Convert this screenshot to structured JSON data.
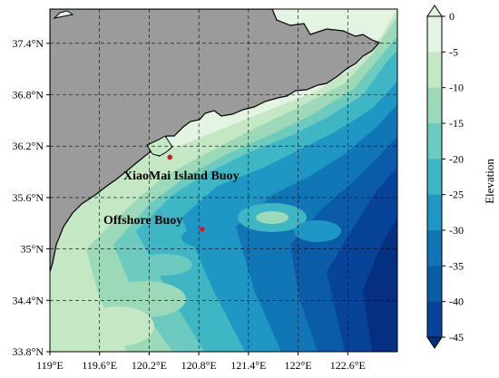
{
  "figure": {
    "colorbar_label": "Elevation",
    "colorbar_ticks": [
      "0",
      "-5",
      "-10",
      "-15",
      "-20",
      "-25",
      "-30",
      "-35",
      "-40",
      "-45"
    ],
    "x_tick_labels": [
      "119°E",
      "119.6°E",
      "120.2°E",
      "120.8°E",
      "121.4°E",
      "122°E",
      "122.6°E"
    ],
    "y_tick_labels": [
      "37.4°N",
      "36.8°N",
      "36.2°N",
      "35.6°N",
      "35°N",
      "34.4°N",
      "33.8°N"
    ],
    "buoys": [
      {
        "name": "XiaoMai Island Buoy",
        "lon": 120.45,
        "lat": 36.07
      },
      {
        "name": "Offshore Buoy",
        "lon": 120.84,
        "lat": 35.23
      }
    ],
    "colors": {
      "land": "#9b9b9b",
      "levels": [
        "#e3f4e3",
        "#c4e8c4",
        "#9bd9b9",
        "#6ccabe",
        "#3eb6c4",
        "#1f97c4",
        "#1176b6",
        "#0b5ca8",
        "#08439a",
        "#052f80"
      ],
      "marker": "#e0141b"
    }
  },
  "chart_data": {
    "type": "heatmap",
    "title": "",
    "xlabel": "",
    "ylabel": "",
    "colorbar_label": "Elevation",
    "colorbar_range": [
      -45,
      0
    ],
    "colorbar_step": 5,
    "xlim": [
      119.0,
      123.2
    ],
    "ylim": [
      33.8,
      37.8
    ],
    "x_ticks": [
      119.0,
      119.6,
      120.2,
      120.8,
      121.4,
      122.0,
      122.6
    ],
    "y_ticks": [
      33.8,
      34.4,
      35.0,
      35.6,
      36.2,
      36.8,
      37.4
    ],
    "grid": true,
    "points": [
      {
        "label": "XiaoMai Island Buoy",
        "x": 120.45,
        "y": 36.07
      },
      {
        "label": "Offshore Buoy",
        "x": 120.84,
        "y": 35.23
      }
    ]
  }
}
